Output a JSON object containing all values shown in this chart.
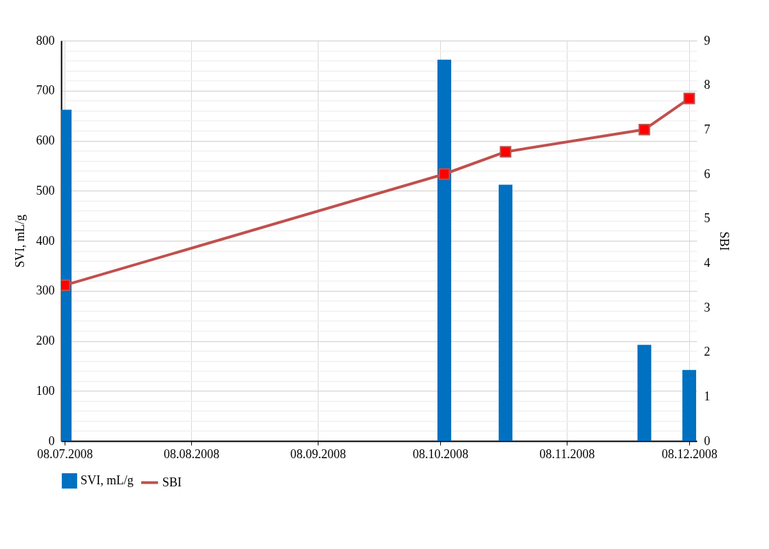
{
  "chart_data": {
    "type": "bar",
    "xlabel": null,
    "ylabel": "SVI, mL/g",
    "y2label": "SBI",
    "x": [
      "2008-07-08",
      "2008-10-09",
      "2008-10-24",
      "2008-11-27",
      "2008-12-08"
    ],
    "series": [
      {
        "name": "SVI, mL/g",
        "color": "#0070c0",
        "values": [
          662,
          762,
          512,
          192,
          142
        ]
      },
      {
        "name": "SBI",
        "type": "line",
        "axis": "y2",
        "color": "#c0504d",
        "marker": "square",
        "values": [
          3.5,
          6.0,
          6.5,
          7.0,
          7.7
        ]
      }
    ],
    "xlim": [
      "2008-07-08",
      "2008-12-09"
    ],
    "xticks": [
      {
        "value": "2008-07-08",
        "label": "08.07.2008"
      },
      {
        "value": "2008-08-08",
        "label": "08.08.2008"
      },
      {
        "value": "2008-09-08",
        "label": "08.09.2008"
      },
      {
        "value": "2008-10-08",
        "label": "08.10.2008"
      },
      {
        "value": "2008-11-08",
        "label": "08.11.2008"
      },
      {
        "value": "2008-12-08",
        "label": "08.12.2008"
      }
    ],
    "ylim": [
      0,
      800
    ],
    "yticks": [
      0,
      {
        "value": 20,
        "label": null
      },
      {
        "value": 40,
        "label": null
      },
      {
        "value": 60,
        "label": null
      },
      {
        "value": 80,
        "label": null
      },
      100,
      {
        "value": 120,
        "label": null
      },
      {
        "value": 140,
        "label": null
      },
      {
        "value": 160,
        "label": null
      },
      {
        "value": 180,
        "label": null
      },
      200,
      {
        "value": 220,
        "label": null
      },
      {
        "value": 240,
        "label": null
      },
      {
        "value": 260,
        "label": null
      },
      {
        "value": 280,
        "label": null
      },
      300,
      {
        "value": 320,
        "label": null
      },
      {
        "value": 340,
        "label": null
      },
      {
        "value": 360,
        "label": null
      },
      {
        "value": 380,
        "label": null
      },
      400,
      {
        "value": 420,
        "label": null
      },
      {
        "value": 440,
        "label": null
      },
      {
        "value": 460,
        "label": null
      },
      {
        "value": 480,
        "label": null
      },
      500,
      {
        "value": 520,
        "label": null
      },
      {
        "value": 540,
        "label": null
      },
      {
        "value": 560,
        "label": null
      },
      {
        "value": 580,
        "label": null
      },
      600,
      {
        "value": 620,
        "label": null
      },
      {
        "value": 640,
        "label": null
      },
      {
        "value": 660,
        "label": null
      },
      {
        "value": 680,
        "label": null
      },
      700,
      {
        "value": 720,
        "label": null
      },
      {
        "value": 740,
        "label": null
      },
      {
        "value": 760,
        "label": null
      },
      {
        "value": 780,
        "label": null
      },
      800
    ],
    "y2lim": [
      0,
      9
    ],
    "y2ticks": [
      0,
      1,
      2,
      3,
      4,
      5,
      6,
      7,
      8,
      9
    ],
    "grid": true,
    "legend": "bottom",
    "line_style": "solid"
  }
}
